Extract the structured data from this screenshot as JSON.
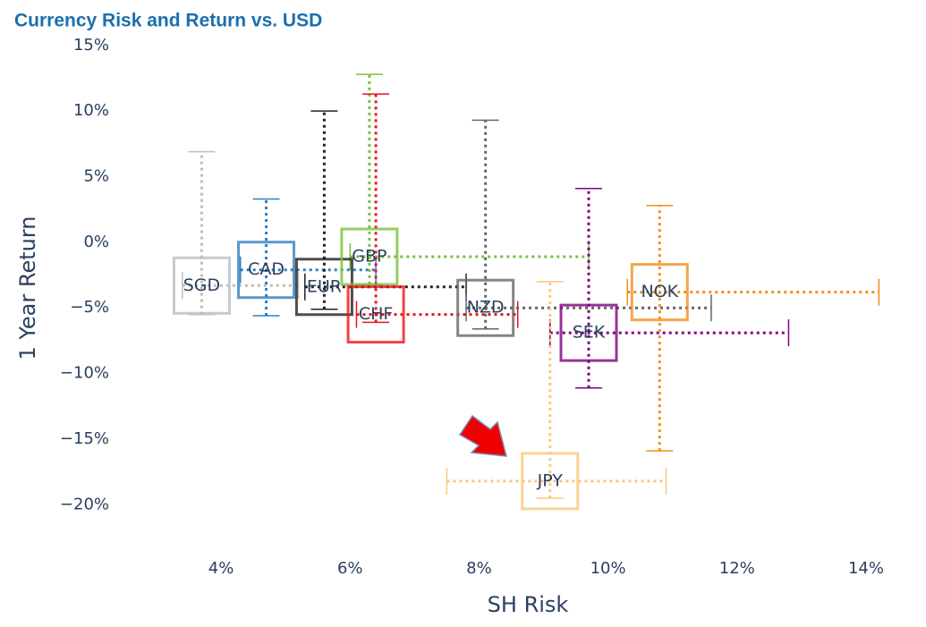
{
  "chart_data": {
    "type": "scatter",
    "title": "Currency Risk and Return vs. USD",
    "x_label": "SH Risk",
    "y_label": "1 Year Return",
    "xlim": [
      3,
      14.5
    ],
    "ylim": [
      -24,
      15
    ],
    "xticks": [
      {
        "value": 4,
        "label": "4%"
      },
      {
        "value": 6,
        "label": "6%"
      },
      {
        "value": 8,
        "label": "8%"
      },
      {
        "value": 10,
        "label": "10%"
      },
      {
        "value": 12,
        "label": "12%"
      },
      {
        "value": 14,
        "label": "14%"
      }
    ],
    "yticks": [
      {
        "value": 15,
        "label": "15%"
      },
      {
        "value": 10,
        "label": "10%"
      },
      {
        "value": 5,
        "label": "5%"
      },
      {
        "value": 0,
        "label": "0%"
      },
      {
        "value": -5,
        "label": "−5%"
      },
      {
        "value": -10,
        "label": "−10%"
      },
      {
        "value": -15,
        "label": "−15%"
      },
      {
        "value": -20,
        "label": "−20%"
      }
    ],
    "series": [
      {
        "name": "SGD",
        "color": "#bdbdbd",
        "x": 3.7,
        "y": -3.3,
        "x_low": 3.4,
        "x_high": 5.2,
        "y_low": -5.5,
        "y_high": 6.9
      },
      {
        "name": "CAD",
        "color": "#2f7fc1",
        "x": 4.7,
        "y": -2.1,
        "x_low": 4.3,
        "x_high": 6.4,
        "y_low": -5.6,
        "y_high": 3.3
      },
      {
        "name": "EUR",
        "color": "#222222",
        "x": 5.6,
        "y": -3.4,
        "x_low": 5.3,
        "x_high": 7.8,
        "y_low": -5.1,
        "y_high": 10
      },
      {
        "name": "GBP",
        "color": "#7dbf3c",
        "x": 6.3,
        "y": -1.1,
        "x_low": 6.0,
        "x_high": 9.7,
        "y_low": -3.2,
        "y_high": 12.8
      },
      {
        "name": "CHF",
        "color": "#e8141b",
        "x": 6.4,
        "y": -5.5,
        "x_low": 6.1,
        "x_high": 8.6,
        "y_low": -6.1,
        "y_high": 11.3
      },
      {
        "name": "NZD",
        "color": "#666666",
        "x": 8.1,
        "y": -5.0,
        "x_low": 7.8,
        "x_high": 11.6,
        "y_low": -6.6,
        "y_high": 9.3
      },
      {
        "name": "SEK",
        "color": "#800080",
        "x": 9.7,
        "y": -6.9,
        "x_low": 9.1,
        "x_high": 12.8,
        "y_low": -11.1,
        "y_high": 4.1
      },
      {
        "name": "NOK",
        "color": "#f28e1c",
        "x": 10.8,
        "y": -3.8,
        "x_low": 10.3,
        "x_high": 14.2,
        "y_low": -15.9,
        "y_high": 2.8
      },
      {
        "name": "JPY",
        "color": "#fdc77a",
        "x": 9.1,
        "y": -18.2,
        "x_low": 7.5,
        "x_high": 10.9,
        "y_low": -19.5,
        "y_high": -3.0
      }
    ]
  }
}
